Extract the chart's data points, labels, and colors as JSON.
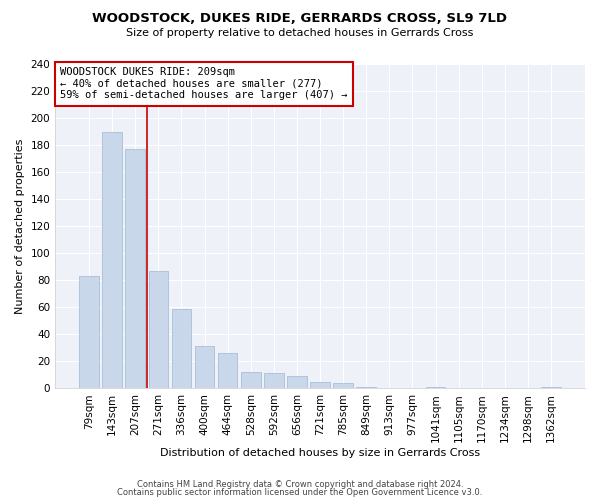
{
  "title": "WOODSTOCK, DUKES RIDE, GERRARDS CROSS, SL9 7LD",
  "subtitle": "Size of property relative to detached houses in Gerrards Cross",
  "xlabel": "Distribution of detached houses by size in Gerrards Cross",
  "ylabel": "Number of detached properties",
  "bar_labels": [
    "79sqm",
    "143sqm",
    "207sqm",
    "271sqm",
    "336sqm",
    "400sqm",
    "464sqm",
    "528sqm",
    "592sqm",
    "656sqm",
    "721sqm",
    "785sqm",
    "849sqm",
    "913sqm",
    "977sqm",
    "1041sqm",
    "1105sqm",
    "1170sqm",
    "1234sqm",
    "1298sqm",
    "1362sqm"
  ],
  "bar_values": [
    83,
    190,
    177,
    87,
    59,
    31,
    26,
    12,
    11,
    9,
    5,
    4,
    1,
    0,
    0,
    1,
    0,
    0,
    0,
    0,
    1
  ],
  "bar_color": "#c8d8ea",
  "bar_edge_color": "#a8c0d8",
  "vline_x": 2.5,
  "vline_color": "#cc0000",
  "annotation_text": "WOODSTOCK DUKES RIDE: 209sqm\n← 40% of detached houses are smaller (277)\n59% of semi-detached houses are larger (407) →",
  "annotation_box_color": "white",
  "annotation_box_edge_color": "#cc0000",
  "ylim": [
    0,
    240
  ],
  "yticks": [
    0,
    20,
    40,
    60,
    80,
    100,
    120,
    140,
    160,
    180,
    200,
    220,
    240
  ],
  "footer_line1": "Contains HM Land Registry data © Crown copyright and database right 2024.",
  "footer_line2": "Contains public sector information licensed under the Open Government Licence v3.0.",
  "bg_color": "#ffffff",
  "plot_bg_color": "#eef2f8",
  "grid_color": "#ffffff",
  "title_fontsize": 9.5,
  "subtitle_fontsize": 8,
  "axis_label_fontsize": 8,
  "tick_fontsize": 7.5,
  "annotation_fontsize": 7.5,
  "footer_fontsize": 6.0
}
